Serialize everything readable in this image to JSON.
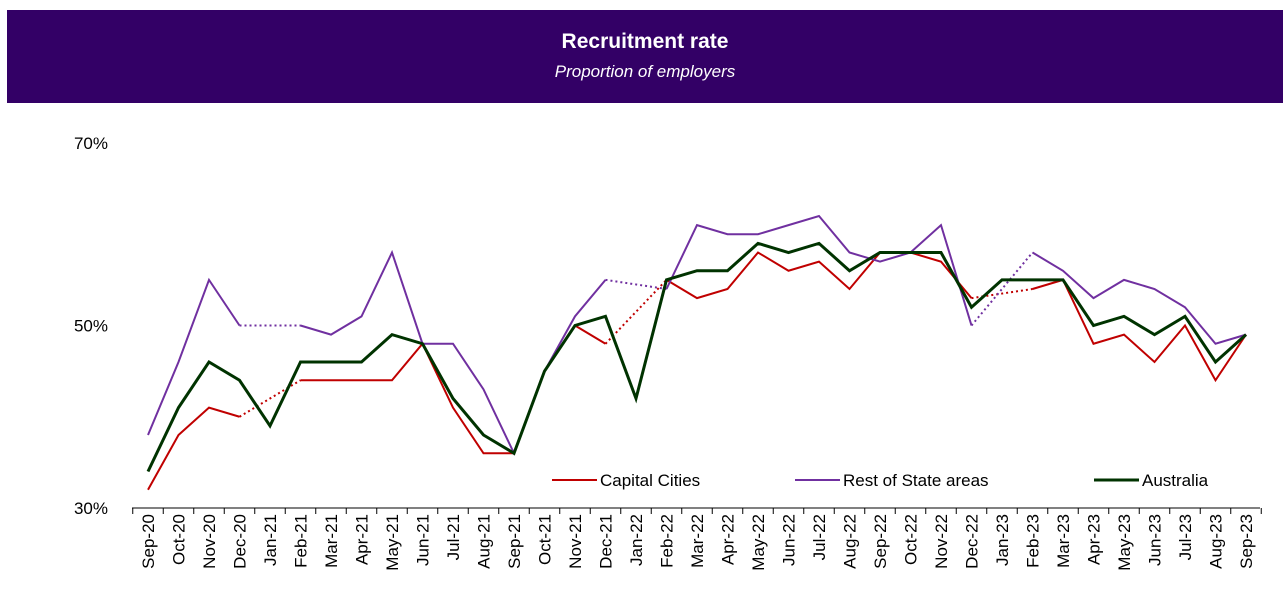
{
  "chart_data": {
    "type": "line",
    "title": "Recruitment rate",
    "subtitle": "Proportion of employers",
    "categories": [
      "Sep-20",
      "Oct-20",
      "Nov-20",
      "Dec-20",
      "Jan-21",
      "Feb-21",
      "Mar-21",
      "Apr-21",
      "May-21",
      "Jun-21",
      "Jul-21",
      "Aug-21",
      "Sep-21",
      "Oct-21",
      "Nov-21",
      "Dec-21",
      "Jan-22",
      "Feb-22",
      "Mar-22",
      "Apr-22",
      "May-22",
      "Jun-22",
      "Jul-22",
      "Aug-22",
      "Sep-22",
      "Oct-22",
      "Nov-22",
      "Dec-22",
      "Jan-23",
      "Feb-23",
      "Mar-23",
      "Apr-23",
      "May-23",
      "Jun-23",
      "Jul-23",
      "Aug-23",
      "Sep-23"
    ],
    "series": [
      {
        "name": "Capital Cities",
        "color": "#c00000",
        "values": [
          32,
          38,
          41,
          40,
          null,
          44,
          44,
          44,
          44,
          48,
          41,
          36,
          36,
          45,
          50,
          48,
          null,
          55,
          53,
          54,
          58,
          56,
          57,
          54,
          58,
          58,
          57,
          53,
          null,
          54,
          55,
          48,
          49,
          46,
          50,
          44,
          49
        ]
      },
      {
        "name": "Rest of State areas",
        "color": "#7030a0",
        "values": [
          38,
          46,
          55,
          50,
          null,
          50,
          49,
          51,
          58,
          48,
          48,
          43,
          36,
          45,
          51,
          55,
          null,
          54,
          61,
          60,
          60,
          61,
          62,
          58,
          57,
          58,
          61,
          50,
          null,
          58,
          56,
          53,
          55,
          54,
          52,
          48,
          49
        ]
      },
      {
        "name": "Australia",
        "color": "#003300",
        "values": [
          34,
          41,
          46,
          44,
          39,
          46,
          46,
          46,
          49,
          48,
          42,
          38,
          36,
          45,
          50,
          51,
          42,
          55,
          56,
          56,
          59,
          58,
          59,
          56,
          58,
          58,
          58,
          52,
          55,
          55,
          55,
          50,
          51,
          49,
          51,
          46,
          49
        ]
      }
    ],
    "ylim": [
      30,
      70
    ],
    "yticks": [
      {
        "value": 30,
        "label": "30%"
      },
      {
        "value": 50,
        "label": "50%"
      },
      {
        "value": 70,
        "label": "70%"
      }
    ]
  }
}
